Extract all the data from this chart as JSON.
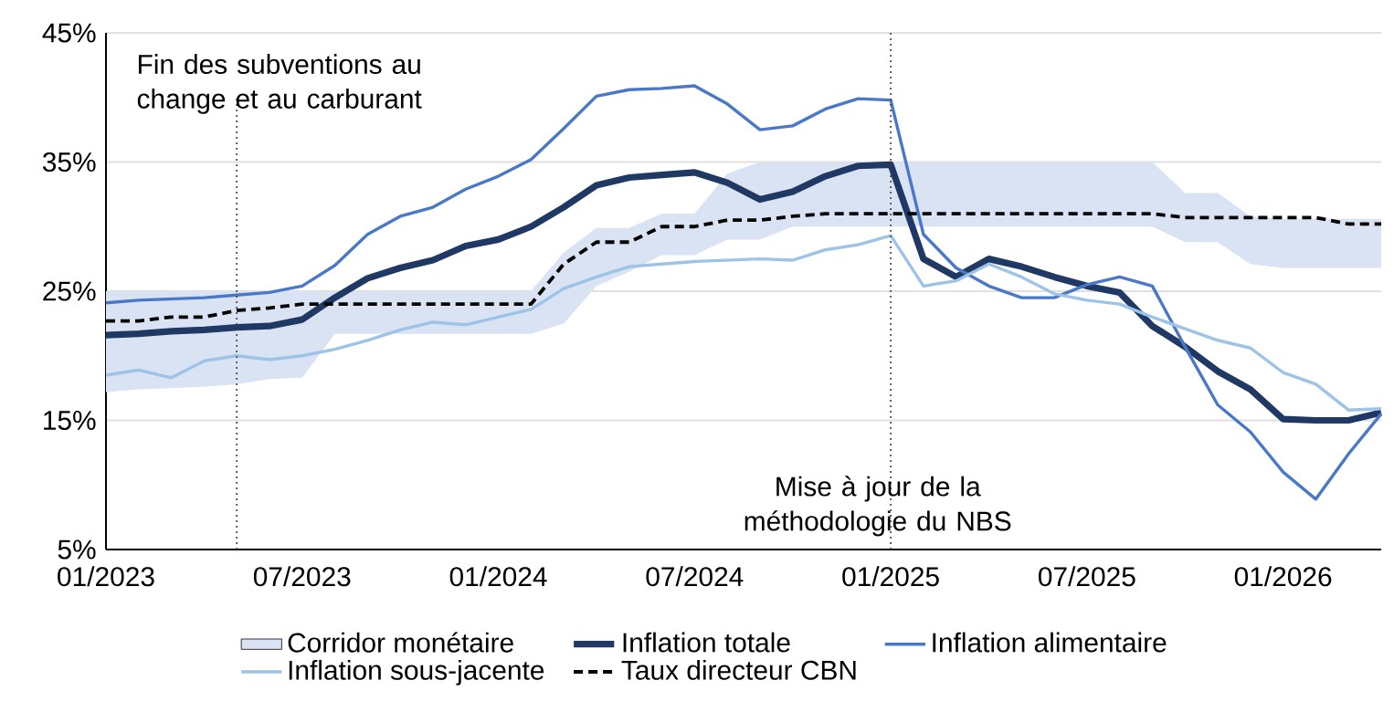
{
  "chart_data": {
    "type": "line",
    "x": [
      "2023-01",
      "2023-02",
      "2023-03",
      "2023-04",
      "2023-05",
      "2023-06",
      "2023-07",
      "2023-08",
      "2023-09",
      "2023-10",
      "2023-11",
      "2023-12",
      "2024-01",
      "2024-02",
      "2024-03",
      "2024-04",
      "2024-05",
      "2024-06",
      "2024-07",
      "2024-08",
      "2024-09",
      "2024-10",
      "2024-11",
      "2024-12",
      "2025-01",
      "2025-02",
      "2025-03",
      "2025-04",
      "2025-05",
      "2025-06",
      "2025-07",
      "2025-08",
      "2025-09",
      "2025-10",
      "2025-11",
      "2025-12",
      "2026-01",
      "2026-02",
      "2026-03",
      "2026-04"
    ],
    "series": [
      {
        "name": "Corridor monétaire",
        "type": "area",
        "color": "#dae3f3",
        "values": [
          null,
          null,
          null,
          null,
          null,
          null,
          null,
          null,
          null,
          null,
          null,
          null,
          null,
          null,
          null,
          null,
          null,
          null,
          null,
          null,
          null,
          null,
          null,
          null,
          null,
          null,
          null,
          null,
          null,
          null,
          null,
          null,
          null,
          null,
          null,
          null,
          null,
          null,
          null,
          null
        ],
        "lower": [
          17.2,
          17.4,
          17.5,
          17.6,
          17.8,
          18.2,
          18.3,
          21.7,
          21.7,
          21.7,
          21.7,
          21.7,
          21.7,
          21.7,
          22.5,
          25.4,
          26.5,
          27.8,
          27.8,
          29.0,
          29.0,
          30.0,
          30.0,
          30.0,
          30.0,
          30.0,
          30.0,
          30.0,
          30.0,
          30.0,
          30.0,
          30.0,
          30.0,
          28.8,
          28.8,
          27.1,
          26.8,
          26.8,
          26.8,
          26.8
        ],
        "upper": [
          25,
          25,
          25,
          25,
          25,
          25,
          25,
          25,
          25,
          25,
          25,
          25,
          25,
          25,
          28.0,
          29.9,
          29.9,
          31.0,
          31.0,
          34.1,
          35,
          35,
          35,
          35,
          35,
          35,
          35,
          35,
          35,
          35,
          35,
          35,
          35,
          32.6,
          32.6,
          30.8,
          30.6,
          30.6,
          30.6,
          30.6
        ]
      },
      {
        "name": "Inflation totale",
        "color": "#1f3864",
        "line_style": "solid",
        "values": [
          21.6,
          21.7,
          21.9,
          22.0,
          22.2,
          22.3,
          22.8,
          24.5,
          26.0,
          26.8,
          27.4,
          28.5,
          29.0,
          30.0,
          31.5,
          33.2,
          33.8,
          34.0,
          34.2,
          33.4,
          32.1,
          32.7,
          33.9,
          34.7,
          34.8,
          27.5,
          26.1,
          27.5,
          26.9,
          26.1,
          25.4,
          24.9,
          22.3,
          20.7,
          18.8,
          17.4,
          15.1,
          15.0,
          15.0,
          15.6
        ]
      },
      {
        "name": "Inflation alimentaire",
        "color": "#4a78c8",
        "line_style": "solid",
        "values": [
          24.1,
          24.3,
          24.4,
          24.5,
          24.7,
          24.9,
          25.4,
          27.0,
          29.4,
          30.8,
          31.5,
          32.9,
          33.9,
          35.2,
          37.6,
          40.1,
          40.6,
          40.7,
          40.9,
          39.5,
          37.5,
          37.8,
          39.1,
          39.9,
          39.8,
          29.4,
          26.8,
          25.4,
          24.5,
          24.5,
          25.5,
          26.1,
          25.4,
          20.7,
          16.2,
          14.1,
          11.0,
          8.9,
          12.4,
          15.5
        ]
      },
      {
        "name": "Inflation sous-jacente",
        "color": "#9dc3e6",
        "line_style": "solid",
        "values": [
          18.5,
          18.9,
          18.3,
          19.6,
          20.0,
          19.7,
          20.0,
          20.5,
          21.2,
          22.0,
          22.6,
          22.4,
          23.0,
          23.6,
          25.2,
          26.1,
          26.9,
          27.1,
          27.3,
          27.4,
          27.5,
          27.4,
          28.2,
          28.6,
          29.3,
          25.4,
          25.8,
          27.1,
          26.1,
          24.8,
          24.3,
          24.0,
          23.0,
          22.1,
          21.2,
          20.6,
          18.7,
          17.8,
          15.8,
          15.9
        ]
      },
      {
        "name": "Taux directeur CBN",
        "color": "#000000",
        "line_style": "dashed",
        "values": [
          22.7,
          22.7,
          23.0,
          23.0,
          23.5,
          23.7,
          24.0,
          24.0,
          24.0,
          24.0,
          24.0,
          24.0,
          24.0,
          24.0,
          27.1,
          28.8,
          28.8,
          30.0,
          30.0,
          30.5,
          30.5,
          30.8,
          31.0,
          31.0,
          31.0,
          31.0,
          31.0,
          31.0,
          31.0,
          31.0,
          31.0,
          31.0,
          31.0,
          30.7,
          30.7,
          30.7,
          30.7,
          30.7,
          30.2,
          30.2
        ]
      }
    ],
    "xlim": [
      "2023-01",
      "2026-04"
    ],
    "xticks": [
      {
        "value": "2023-01",
        "label": "01/2023"
      },
      {
        "value": "2023-07",
        "label": "07/2023"
      },
      {
        "value": "2024-01",
        "label": "01/2024"
      },
      {
        "value": "2024-07",
        "label": "07/2024"
      },
      {
        "value": "2025-01",
        "label": "01/2025"
      },
      {
        "value": "2025-07",
        "label": "07/2025"
      },
      {
        "value": "2026-01",
        "label": "01/2026"
      }
    ],
    "ylim": [
      5,
      45
    ],
    "yticks": [
      {
        "value": 5,
        "label": "5%"
      },
      {
        "value": 15,
        "label": "15%"
      },
      {
        "value": 25,
        "label": "25%"
      },
      {
        "value": 35,
        "label": "35%"
      },
      {
        "value": 45,
        "label": "45%"
      }
    ],
    "ref_lines": [
      {
        "axis": "x",
        "value": "2023-05",
        "label": "Fin des subventions au change et au carburant",
        "color": "#404040",
        "line_style": "dotted"
      },
      {
        "axis": "x",
        "value": "2025-01",
        "label": "Mise à jour de la méthodologie du NBS",
        "color": "#404040",
        "line_style": "dotted"
      }
    ],
    "grid": "y",
    "legend": "bottom",
    "marker": "none"
  }
}
